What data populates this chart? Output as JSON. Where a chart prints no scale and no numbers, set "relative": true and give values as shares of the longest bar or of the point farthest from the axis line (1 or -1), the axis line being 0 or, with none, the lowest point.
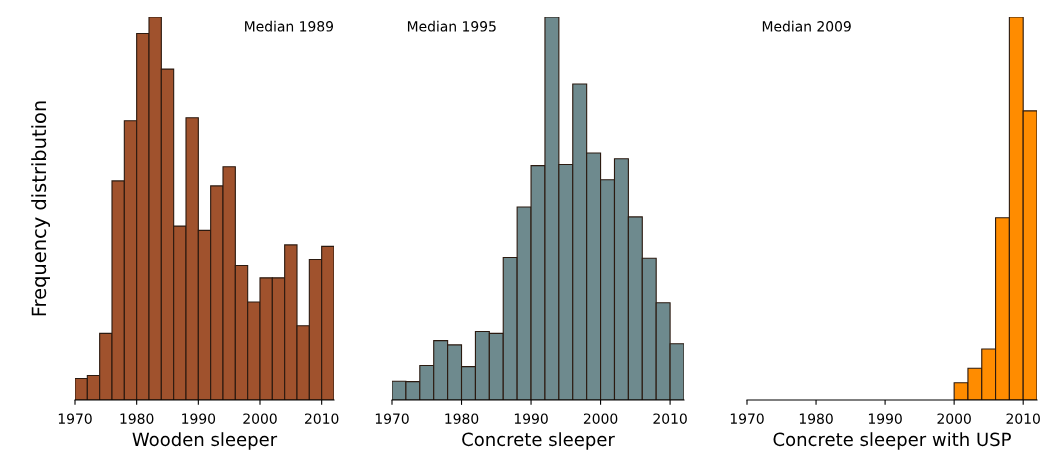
{
  "chart_data": [
    {
      "type": "bar",
      "relative": true,
      "ylabel": "Frequency distribution",
      "xlabel": "Wooden sleeper",
      "annotations": [
        "Median 1989"
      ],
      "color": "#a0522d",
      "xlim": [
        1970,
        2012
      ],
      "xticks": [
        1970,
        1980,
        1990,
        2000,
        2010
      ],
      "tick_labels": "x",
      "grid": false,
      "x": [
        1971,
        1973,
        1975,
        1977,
        1979,
        1981,
        1983,
        1985,
        1987,
        1989,
        1991,
        1993,
        1995,
        1997,
        1999,
        2001,
        2003,
        2005,
        2007,
        2009,
        2011
      ],
      "values": [
        0.056,
        0.064,
        0.174,
        0.572,
        0.729,
        0.957,
        1.0,
        0.864,
        0.454,
        0.737,
        0.443,
        0.559,
        0.609,
        0.351,
        0.256,
        0.319,
        0.319,
        0.405,
        0.194,
        0.367,
        0.401
      ]
    },
    {
      "type": "bar",
      "relative": true,
      "xlabel": "Concrete sleeper",
      "annotations": [
        "Median 1995"
      ],
      "color": "#6e8a8e",
      "xlim": [
        1970,
        2012
      ],
      "xticks": [
        1970,
        1980,
        1990,
        2000,
        2010
      ],
      "tick_labels": "x",
      "grid": false,
      "x": [
        1971,
        1973,
        1975,
        1977,
        1979,
        1981,
        1983,
        1985,
        1987,
        1989,
        1991,
        1993,
        1995,
        1997,
        1999,
        2001,
        2003,
        2005,
        2007,
        2009,
        2011
      ],
      "values": [
        0.049,
        0.048,
        0.09,
        0.155,
        0.144,
        0.087,
        0.179,
        0.174,
        0.372,
        0.504,
        0.612,
        1.0,
        0.615,
        0.825,
        0.645,
        0.575,
        0.63,
        0.478,
        0.37,
        0.254,
        0.147
      ]
    },
    {
      "type": "bar",
      "relative": true,
      "xlabel": "Concrete sleeper with USP",
      "annotations": [
        "Median 2009"
      ],
      "color": "#ff8c00",
      "xlim": [
        1970,
        2012
      ],
      "xticks": [
        1970,
        1980,
        1990,
        2000,
        2010
      ],
      "tick_labels": "x",
      "grid": false,
      "x": [
        2001,
        2003,
        2005,
        2007,
        2009,
        2011
      ],
      "values": [
        0.045,
        0.083,
        0.133,
        0.476,
        1.0,
        0.755
      ]
    }
  ]
}
